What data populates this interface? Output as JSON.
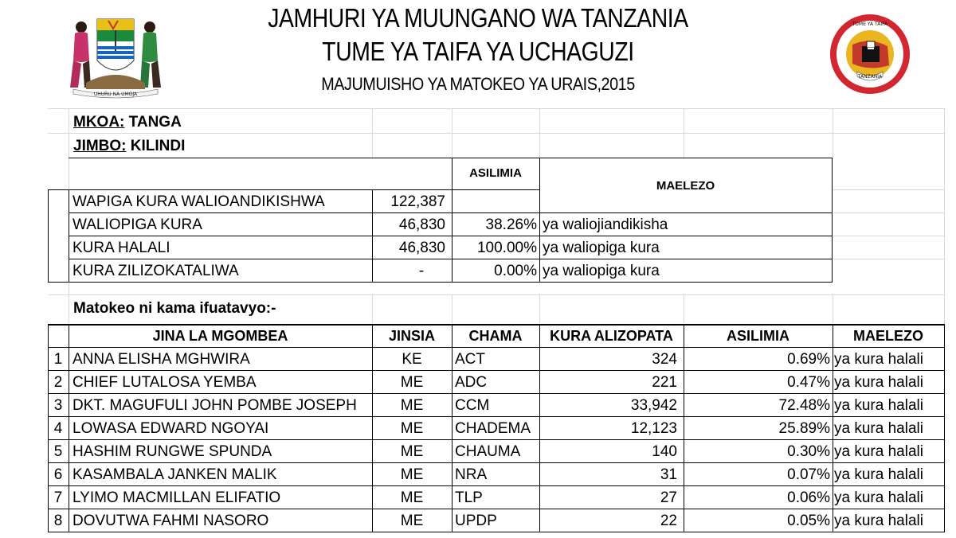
{
  "header": {
    "line1": "JAMHURI YA MUUNGANO WA TANZANIA",
    "line2": "TUME YA TAIFA YA UCHAGUZI",
    "line3": "MAJUMUISHO YA MATOKEO YA URAIS,2015"
  },
  "emblems": {
    "coat_of_arms": {
      "icon": "coat-of-arms-icon",
      "motto": "UHURU NA UMOJA"
    },
    "nec_seal": {
      "icon": "nec-seal-icon",
      "text_top": "TUME YA TAIFA YA UCHAGUZI",
      "text_bottom": "TANZANIA",
      "accent": "#d22630"
    }
  },
  "location": {
    "region_label": "MKOA:",
    "region_value": "TANGA",
    "constituency_label": "JIMBO:",
    "constituency_value": "KILINDI"
  },
  "summary": {
    "col_percent": "ASILIMIA",
    "col_remarks": "MAELEZO",
    "rows": [
      {
        "label": "WAPIGA KURA WALIOANDIKISHWA",
        "value": "122,387",
        "percent": "",
        "remarks": ""
      },
      {
        "label": "WALIOPIGA KURA",
        "value": "46,830",
        "percent": "38.26%",
        "remarks": "ya waliojiandikisha"
      },
      {
        "label": "KURA HALALI",
        "value": "46,830",
        "percent": "100.00%",
        "remarks": "ya waliopiga kura"
      },
      {
        "label": "KURA ZILIZOKATALIWA",
        "value": "-",
        "percent": "0.00%",
        "remarks": "ya waliopiga kura"
      }
    ]
  },
  "results_intro": "Matokeo ni kama ifuatavyo:-",
  "results": {
    "headers": [
      "JINA LA MGOMBEA",
      "JINSIA",
      "CHAMA",
      "KURA ALIZOPATA",
      "ASILIMIA",
      "MAELEZO"
    ],
    "rows": [
      {
        "no": "1",
        "name": "ANNA ELISHA MGHWIRA",
        "gender": "KE",
        "party": "ACT",
        "votes": "324",
        "percent": "0.69%",
        "remarks": "ya kura halali"
      },
      {
        "no": "2",
        "name": "CHIEF LUTALOSA YEMBA",
        "gender": "ME",
        "party": "ADC",
        "votes": "221",
        "percent": "0.47%",
        "remarks": "ya kura halali"
      },
      {
        "no": "3",
        "name": "DKT. MAGUFULI JOHN POMBE JOSEPH",
        "gender": "ME",
        "party": "CCM",
        "votes": "33,942",
        "percent": "72.48%",
        "remarks": "ya kura halali"
      },
      {
        "no": "4",
        "name": "LOWASA EDWARD NGOYAI",
        "gender": "ME",
        "party": "CHADEMA",
        "votes": "12,123",
        "percent": "25.89%",
        "remarks": "ya kura halali"
      },
      {
        "no": "5",
        "name": "HASHIM RUNGWE SPUNDA",
        "gender": "ME",
        "party": "CHAUMA",
        "votes": "140",
        "percent": "0.30%",
        "remarks": "ya kura halali"
      },
      {
        "no": "6",
        "name": "KASAMBALA JANKEN MALIK",
        "gender": "ME",
        "party": "NRA",
        "votes": "31",
        "percent": "0.07%",
        "remarks": "ya kura halali"
      },
      {
        "no": "7",
        "name": "LYIMO MACMILLAN ELIFATIO",
        "gender": "ME",
        "party": "TLP",
        "votes": "27",
        "percent": "0.06%",
        "remarks": "ya kura halali"
      },
      {
        "no": "8",
        "name": "DOVUTWA FAHMI NASORO",
        "gender": "ME",
        "party": "UPDP",
        "votes": "22",
        "percent": "0.05%",
        "remarks": "ya kura halali"
      }
    ]
  }
}
